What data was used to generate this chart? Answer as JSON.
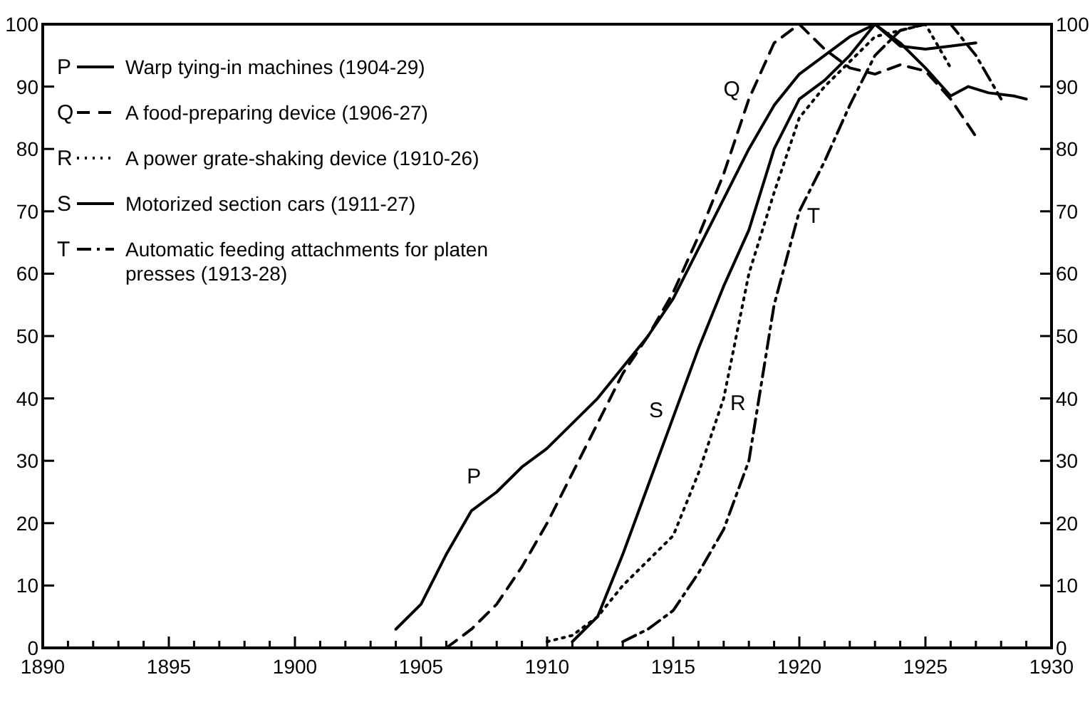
{
  "chart_data": {
    "type": "line",
    "xlim": [
      1890,
      1930
    ],
    "xticks": [
      1890,
      {
        "value": 1891,
        "label": null
      },
      {
        "value": 1892,
        "label": null
      },
      {
        "value": 1893,
        "label": null
      },
      {
        "value": 1894,
        "label": null
      },
      1895,
      {
        "value": 1896,
        "label": null
      },
      {
        "value": 1897,
        "label": null
      },
      {
        "value": 1898,
        "label": null
      },
      {
        "value": 1899,
        "label": null
      },
      1900,
      {
        "value": 1901,
        "label": null
      },
      {
        "value": 1902,
        "label": null
      },
      {
        "value": 1903,
        "label": null
      },
      {
        "value": 1904,
        "label": null
      },
      1905,
      {
        "value": 1906,
        "label": null
      },
      {
        "value": 1907,
        "label": null
      },
      {
        "value": 1908,
        "label": null
      },
      {
        "value": 1909,
        "label": null
      },
      1910,
      {
        "value": 1911,
        "label": null
      },
      {
        "value": 1912,
        "label": null
      },
      {
        "value": 1913,
        "label": null
      },
      {
        "value": 1914,
        "label": null
      },
      1915,
      {
        "value": 1916,
        "label": null
      },
      {
        "value": 1917,
        "label": null
      },
      {
        "value": 1918,
        "label": null
      },
      {
        "value": 1919,
        "label": null
      },
      1920,
      {
        "value": 1921,
        "label": null
      },
      {
        "value": 1922,
        "label": null
      },
      {
        "value": 1923,
        "label": null
      },
      {
        "value": 1924,
        "label": null
      },
      1925,
      {
        "value": 1926,
        "label": null
      },
      {
        "value": 1927,
        "label": null
      },
      {
        "value": 1928,
        "label": null
      },
      {
        "value": 1929,
        "label": null
      },
      1930
    ],
    "ylim": [
      0,
      100
    ],
    "yticks": [
      0,
      10,
      20,
      30,
      40,
      50,
      60,
      70,
      80,
      90,
      100
    ],
    "y2lim": [
      0,
      100
    ],
    "y2ticks": [
      0,
      10,
      20,
      30,
      40,
      50,
      60,
      70,
      80,
      90,
      100
    ],
    "grid": false,
    "legend": "top left",
    "marker": "none",
    "series": [
      {
        "name": "Warp tying-in machines (1904-29)",
        "color": "#000000",
        "line_style": "solid",
        "x": [
          1904,
          1905,
          1906,
          1907,
          1908,
          1909,
          1910,
          1911,
          1912,
          1913,
          1914,
          1915,
          1916,
          1917,
          1918,
          1919,
          1920,
          1921,
          1922,
          1923,
          1924,
          1925,
          1926,
          1926.7,
          1927.5,
          1928.5,
          1929
        ],
        "values": [
          3,
          7,
          15,
          22,
          25,
          29,
          32,
          36,
          40,
          45,
          50,
          56,
          64,
          72,
          80,
          87,
          92,
          95,
          98,
          100,
          97,
          93,
          88.5,
          90,
          89,
          88.5,
          88
        ]
      },
      {
        "name": "A food-preparing device (1906-27)",
        "color": "#000000",
        "line_style": "dashed",
        "x": [
          1906,
          1907,
          1908,
          1909,
          1910,
          1911,
          1912,
          1913,
          1914,
          1915,
          1916,
          1917,
          1918,
          1919,
          1920,
          1921,
          1922,
          1923,
          1924,
          1925,
          1926,
          1927
        ],
        "values": [
          0,
          3,
          7,
          13,
          20,
          28,
          36,
          44,
          50,
          57,
          66,
          76,
          88,
          97,
          100,
          96,
          93,
          92,
          93.5,
          92.5,
          88,
          82
        ]
      },
      {
        "name": "A power grate-shaking device (1910-26)",
        "color": "#000000",
        "line_style": "dotted",
        "x": [
          1910,
          1911,
          1912,
          1913,
          1914,
          1915,
          1916,
          1917,
          1918,
          1919,
          1920,
          1921,
          1922,
          1923,
          1924,
          1925,
          1926
        ],
        "values": [
          1,
          2,
          5,
          10,
          14,
          18,
          28,
          40,
          60,
          73,
          85,
          90,
          94,
          98,
          99,
          100,
          93
        ]
      },
      {
        "name": "Motorized section cars (1911-27)",
        "color": "#000000",
        "line_style": "solid",
        "x": [
          1911,
          1912,
          1913,
          1914,
          1915,
          1916,
          1917,
          1918,
          1919,
          1920,
          1921,
          1922,
          1923,
          1924,
          1925,
          1926,
          1927
        ],
        "values": [
          1,
          5,
          15,
          26,
          37,
          48,
          58,
          67,
          80,
          88,
          91,
          95,
          100,
          96.5,
          96,
          96.5,
          97
        ]
      },
      {
        "name": "Automatic feeding attachments for platen presses (1913-28)",
        "color": "#000000",
        "line_style": "dashdot",
        "x": [
          1913,
          1914,
          1915,
          1916,
          1917,
          1918,
          1919,
          1920,
          1921,
          1922,
          1923,
          1924,
          1925,
          1926,
          1927,
          1928
        ],
        "values": [
          1,
          3,
          6,
          12,
          19,
          30,
          55,
          70,
          78,
          87,
          95,
          99,
          100,
          100,
          95,
          88
        ]
      }
    ],
    "annotations": [
      {
        "text": "P",
        "x": 1908,
        "y": 25
      },
      {
        "text": "Q",
        "x": 1918,
        "y": 88
      },
      {
        "text": "R",
        "x": 1917,
        "y": 40
      },
      {
        "text": "S",
        "x": 1915,
        "y": 37
      },
      {
        "text": "T",
        "x": 1920,
        "y": 70
      }
    ]
  }
}
